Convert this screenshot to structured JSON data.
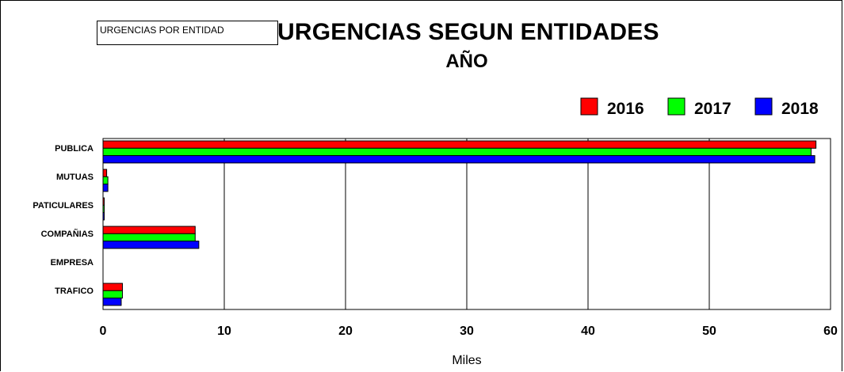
{
  "tag_label": "URGENCIAS POR ENTIDAD",
  "chart_data": {
    "type": "bar",
    "orientation": "horizontal",
    "title": "URGENCIAS SEGUN ENTIDADES",
    "subtitle": "AÑO",
    "xlabel": "Miles",
    "ylabel": "",
    "xlim": [
      0,
      60
    ],
    "xticks": [
      0,
      10,
      20,
      30,
      40,
      50,
      60
    ],
    "grid": true,
    "legend_position": "top-right",
    "categories": [
      "PUBLICA",
      "MUTUAS",
      "PATICULARES",
      "COMPAÑIAS",
      "EMPRESA",
      "TRAFICO"
    ],
    "series": [
      {
        "name": "2016",
        "color": "#ff0000",
        "values": [
          58.8,
          0.3,
          0.1,
          7.6,
          0,
          1.6
        ]
      },
      {
        "name": "2017",
        "color": "#00ff00",
        "values": [
          58.4,
          0.4,
          0.1,
          7.6,
          0,
          1.6
        ]
      },
      {
        "name": "2018",
        "color": "#0000ff",
        "values": [
          58.7,
          0.4,
          0.1,
          7.9,
          0,
          1.5
        ]
      }
    ]
  }
}
